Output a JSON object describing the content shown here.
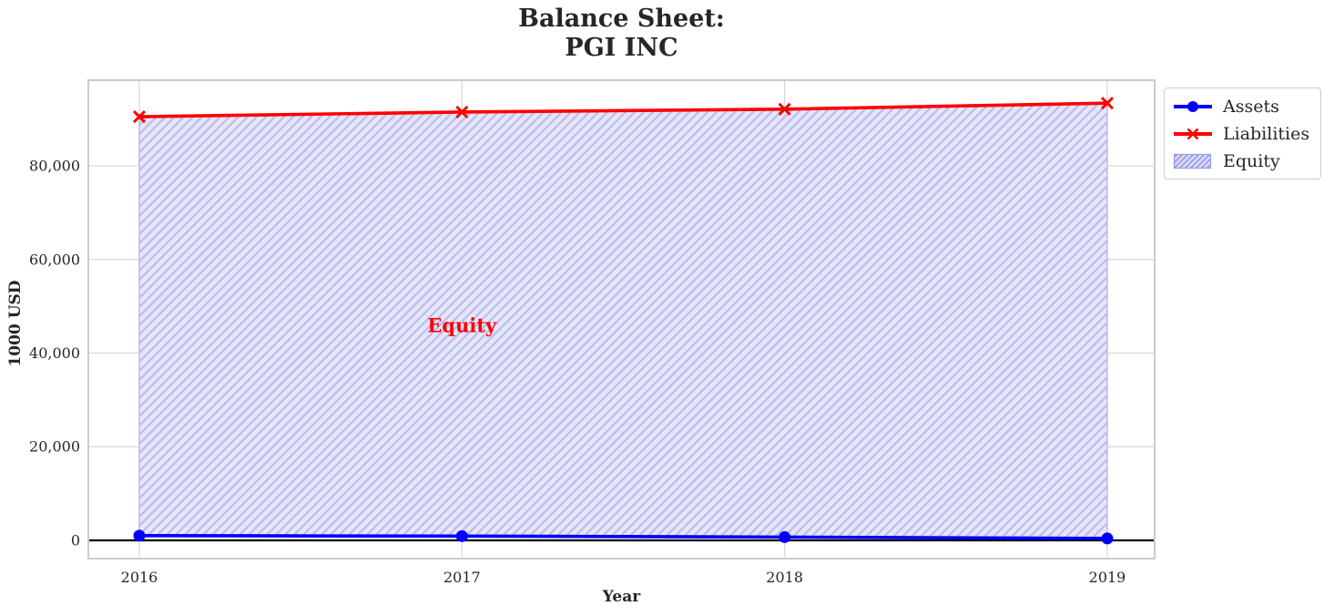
{
  "title": {
    "line1": "Balance Sheet:",
    "line2": "PGI INC"
  },
  "chart_data": {
    "type": "line",
    "title": "Balance Sheet:\nPGI INC",
    "x": [
      2016,
      2017,
      2018,
      2019
    ],
    "x_tick_labels": [
      "2016",
      "2017",
      "2018",
      "2019"
    ],
    "series": [
      {
        "name": "Assets",
        "color": "#0000ff",
        "marker": "circle",
        "values": [
          1000,
          900,
          700,
          400
        ]
      },
      {
        "name": "Liabilities",
        "color": "#ff0000",
        "marker": "x",
        "values": [
          90500,
          91500,
          92100,
          93400
        ]
      }
    ],
    "fill_between": {
      "label": "Equity",
      "between": [
        "Assets",
        "Liabilities"
      ],
      "hatch": "/",
      "fill_color": "#e6e6f9",
      "hatch_color": "#bcbcf0",
      "edge_color": "#b0b0ea"
    },
    "annotation": {
      "text": "Equity",
      "x": 2017,
      "y": 46000,
      "color": "#ff0000"
    },
    "xlabel": "Year",
    "ylabel": "1000 USD",
    "yticks": [
      0,
      20000,
      40000,
      60000,
      80000
    ],
    "ytick_labels": [
      "0",
      "20,000",
      "40,000",
      "60,000",
      "80,000"
    ],
    "ylim": [
      -3900,
      98300
    ],
    "grid": true,
    "zero_line": true,
    "legend_position": "outside-upper-right"
  },
  "legend": {
    "items": [
      {
        "label": "Assets",
        "color": "#0000ff",
        "marker": "line-circle"
      },
      {
        "label": "Liabilities",
        "color": "#ff0000",
        "marker": "line-x"
      },
      {
        "label": "Equity",
        "marker": "hatch-patch",
        "fill_color": "#dcdcf6",
        "hatch_color": "#9a9ae8",
        "edge_color": "#9a9ae0"
      }
    ]
  },
  "colors": {
    "text": "#262626",
    "grid": "#d9d9d9",
    "spine": "#cccccc",
    "zero_line": "#000000",
    "background": "#ffffff"
  }
}
